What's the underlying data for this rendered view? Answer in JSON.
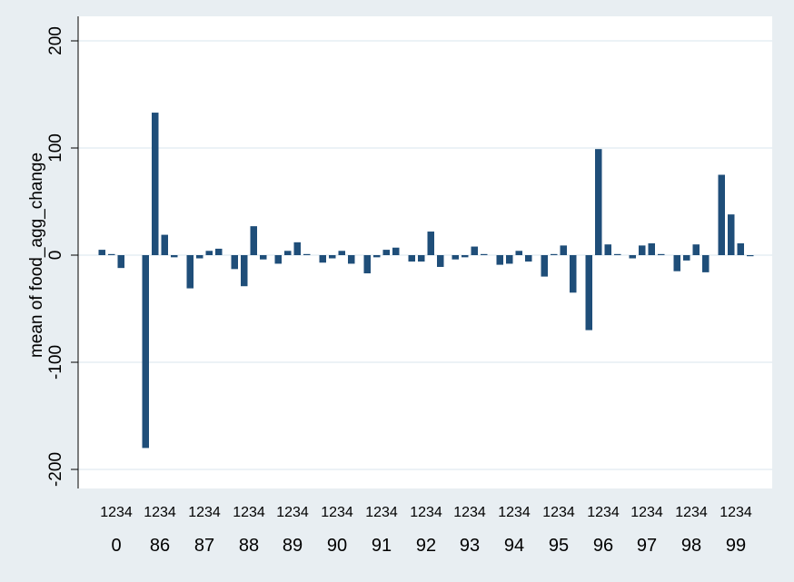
{
  "chart_data": {
    "type": "bar",
    "title": "",
    "xlabel": "",
    "ylabel": "mean of food_agg_change",
    "ylim": [
      -200,
      200
    ],
    "yticks": [
      -200,
      -100,
      0,
      100,
      200
    ],
    "grid": true,
    "legend": "none",
    "bar_color": "#1f4e79",
    "subcategories": [
      "1",
      "2",
      "3",
      "4"
    ],
    "groups": [
      {
        "label": "0",
        "values": [
          5,
          1,
          -12,
          null
        ]
      },
      {
        "label": "86",
        "values": [
          -180,
          133,
          19,
          -2
        ]
      },
      {
        "label": "87",
        "values": [
          -31,
          -3,
          4,
          6
        ]
      },
      {
        "label": "88",
        "values": [
          -13,
          -29,
          27,
          -4
        ]
      },
      {
        "label": "89",
        "values": [
          -8,
          4,
          12,
          1
        ]
      },
      {
        "label": "90",
        "values": [
          -7,
          -3,
          4,
          -8
        ]
      },
      {
        "label": "91",
        "values": [
          -17,
          -2,
          5,
          7
        ]
      },
      {
        "label": "92",
        "values": [
          -6,
          -6,
          22,
          -11
        ]
      },
      {
        "label": "93",
        "values": [
          -4,
          -2,
          8,
          1
        ]
      },
      {
        "label": "94",
        "values": [
          -9,
          -8,
          4,
          -6
        ]
      },
      {
        "label": "95",
        "values": [
          -20,
          1,
          9,
          -35
        ]
      },
      {
        "label": "96",
        "values": [
          -70,
          99,
          10,
          1
        ]
      },
      {
        "label": "97",
        "values": [
          -3,
          9,
          11,
          1
        ]
      },
      {
        "label": "98",
        "values": [
          -15,
          -5,
          10,
          -16
        ]
      },
      {
        "label": "99",
        "values": [
          75,
          38,
          11,
          -1
        ]
      }
    ]
  }
}
